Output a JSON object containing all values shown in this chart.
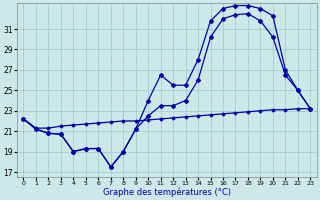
{
  "xlabel": "Graphe des températures (°C)",
  "background_color": "#cce8e8",
  "line_color": "#0000aa",
  "x_ticks": [
    0,
    1,
    2,
    3,
    4,
    5,
    6,
    7,
    8,
    9,
    10,
    11,
    12,
    13,
    14,
    15,
    16,
    17,
    18,
    19,
    20,
    21,
    22,
    23
  ],
  "y_ticks": [
    17,
    19,
    21,
    23,
    25,
    27,
    29,
    31
  ],
  "ylim": [
    16.5,
    33.5
  ],
  "xlim": [
    -0.5,
    23.5
  ],
  "line1_x": [
    0,
    1,
    2,
    3,
    4,
    5,
    6,
    7,
    8,
    9,
    10,
    11,
    12,
    13,
    14,
    15,
    16,
    17,
    18,
    19,
    20,
    21,
    22,
    23
  ],
  "line1_y": [
    22.2,
    21.2,
    20.8,
    20.7,
    19.0,
    19.3,
    19.3,
    17.5,
    19.0,
    21.2,
    22.5,
    23.5,
    23.5,
    24.0,
    26.0,
    30.2,
    32.0,
    32.4,
    32.5,
    31.8,
    30.2,
    26.5,
    25.0,
    23.2
  ],
  "line2_x": [
    0,
    1,
    2,
    3,
    4,
    5,
    6,
    7,
    8,
    9,
    10,
    11,
    12,
    13,
    14,
    15,
    16,
    17,
    18,
    19,
    20,
    21,
    22,
    23
  ],
  "line2_y": [
    22.2,
    21.2,
    20.8,
    20.7,
    19.0,
    19.3,
    19.3,
    17.5,
    19.0,
    21.2,
    24.0,
    26.5,
    25.5,
    25.5,
    28.0,
    31.8,
    33.0,
    33.3,
    33.3,
    33.0,
    32.3,
    27.0,
    25.0,
    23.2
  ],
  "line3_x": [
    0,
    1,
    2,
    3,
    4,
    5,
    6,
    7,
    8,
    9,
    10,
    11,
    12,
    13,
    14,
    15,
    16,
    17,
    18,
    19,
    20,
    21,
    22,
    23
  ],
  "line3_y": [
    22.2,
    21.3,
    21.3,
    21.5,
    21.6,
    21.7,
    21.8,
    21.9,
    22.0,
    22.0,
    22.1,
    22.2,
    22.3,
    22.4,
    22.5,
    22.6,
    22.7,
    22.8,
    22.9,
    23.0,
    23.1,
    23.1,
    23.2,
    23.2
  ]
}
